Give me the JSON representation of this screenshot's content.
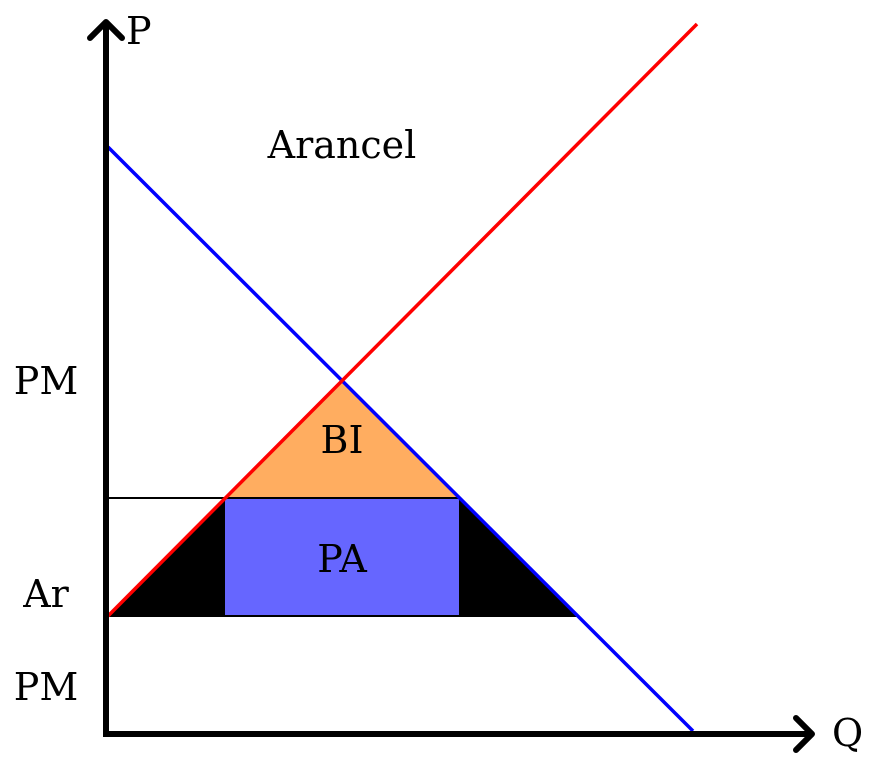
{
  "axes": {
    "y_label": "P",
    "x_label": "Q"
  },
  "title": "Arancel",
  "price_labels": {
    "upper": "PM",
    "tariff": "Ar",
    "lower": "PM"
  },
  "area_labels": {
    "bi": "BI",
    "pa": "PA"
  },
  "colors": {
    "supply": "#ff0000",
    "demand": "#0000ff",
    "bi_fill": "#ffad60",
    "pa_fill": "#6666ff",
    "loss_fill": "#000000",
    "axis": "#000000"
  }
}
